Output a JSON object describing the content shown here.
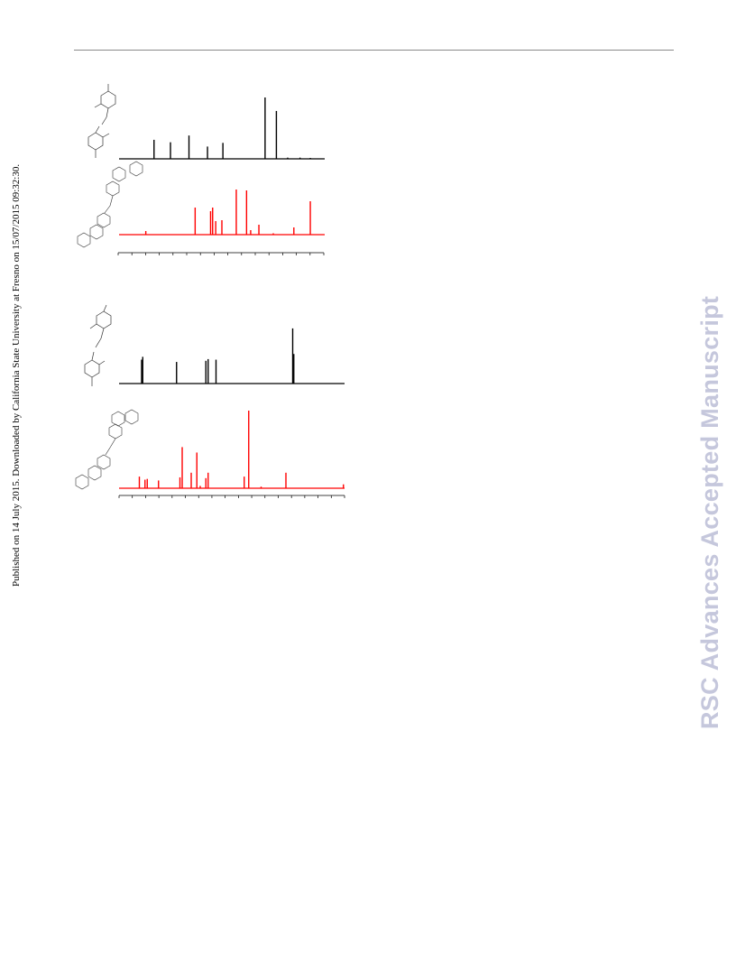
{
  "header": {
    "publication_note": "Published on 14 July 2015. Downloaded by California State University at Fresno on 15/07/2015 09:32:30.",
    "watermark": "RSC Advances Accepted Manuscript"
  },
  "colors": {
    "spectrum_black": "#000000",
    "spectrum_red": "#ff0000",
    "watermark": "#c5c7dc"
  },
  "chart_data": [
    {
      "type": "line",
      "panel": "upper",
      "series": [
        {
          "color": "#000000",
          "peaks": [
            [
              0.17,
              0.31
            ],
            [
              0.25,
              0.27
            ],
            [
              0.34,
              0.38
            ],
            [
              0.43,
              0.2
            ],
            [
              0.505,
              0.26
            ],
            [
              0.71,
              1.0
            ],
            [
              0.765,
              0.78
            ],
            [
              0.82,
              0.02
            ],
            [
              0.88,
              0.02
            ],
            [
              0.93,
              0.015
            ]
          ]
        },
        {
          "color": "#ff0000",
          "peaks": [
            [
              0.13,
              0.08
            ],
            [
              0.37,
              0.6
            ],
            [
              0.445,
              0.52
            ],
            [
              0.455,
              0.6
            ],
            [
              0.47,
              0.3
            ],
            [
              0.5,
              0.32
            ],
            [
              0.57,
              1.0
            ],
            [
              0.62,
              0.98
            ],
            [
              0.64,
              0.1
            ],
            [
              0.68,
              0.22
            ],
            [
              0.75,
              0.03
            ],
            [
              0.85,
              0.16
            ],
            [
              0.93,
              0.74
            ]
          ]
        }
      ],
      "x_ticks": 16
    },
    {
      "type": "line",
      "panel": "lower",
      "series": [
        {
          "color": "#000000",
          "peaks": [
            [
              0.1,
              0.42
            ],
            [
              0.105,
              0.47
            ],
            [
              0.255,
              0.38
            ],
            [
              0.385,
              0.4
            ],
            [
              0.395,
              0.43
            ],
            [
              0.43,
              0.42
            ],
            [
              0.77,
              0.97
            ],
            [
              0.775,
              0.52
            ]
          ]
        },
        {
          "color": "#ff0000",
          "peaks": [
            [
              0.09,
              0.15
            ],
            [
              0.115,
              0.11
            ],
            [
              0.125,
              0.12
            ],
            [
              0.175,
              0.1
            ],
            [
              0.27,
              0.14
            ],
            [
              0.28,
              0.53
            ],
            [
              0.32,
              0.2
            ],
            [
              0.345,
              0.46
            ],
            [
              0.36,
              0.03
            ],
            [
              0.385,
              0.13
            ],
            [
              0.395,
              0.2
            ],
            [
              0.555,
              0.15
            ],
            [
              0.575,
              1.0
            ],
            [
              0.63,
              0.02
            ],
            [
              0.74,
              0.2
            ],
            [
              0.995,
              0.05
            ]
          ]
        }
      ],
      "x_ticks": 18
    }
  ]
}
